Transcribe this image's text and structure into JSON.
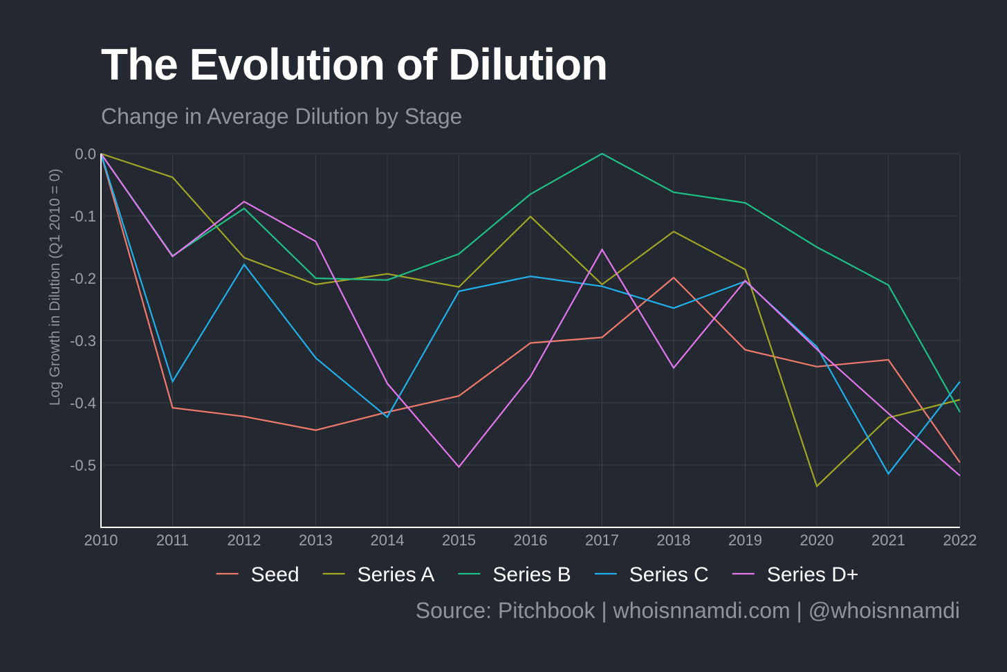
{
  "title": "The Evolution of Dilution",
  "subtitle": "Change in Average Dilution by Stage",
  "source": "Source: Pitchbook | whoisnnamdi.com | @whoisnnamdi",
  "colors": {
    "background": "#242830",
    "grid": "#3a3e46",
    "axis": "#ffffff",
    "tick_text": "#9da1a8"
  },
  "chart_data": {
    "type": "line",
    "ylabel": "Log Growth in Dilution (Q1 2010 = 0)",
    "xlabel": "",
    "x": [
      2010,
      2011,
      2012,
      2013,
      2014,
      2015,
      2016,
      2017,
      2018,
      2019,
      2020,
      2021,
      2022
    ],
    "x_tick_labels": [
      "2010",
      "2011",
      "2012",
      "2013",
      "2014",
      "2015",
      "2016",
      "2017",
      "2018",
      "2019",
      "2020",
      "2021",
      "2022"
    ],
    "xlim": [
      2010,
      2022
    ],
    "ylim": [
      -0.6,
      0.0
    ],
    "y_ticks": [
      0.0,
      -0.1,
      -0.2,
      -0.3,
      -0.4,
      -0.5
    ],
    "y_tick_labels": [
      "0.0",
      "-0.1",
      "-0.2",
      "-0.3",
      "-0.4",
      "-0.5"
    ],
    "grid": true,
    "legend_position": "bottom",
    "series": [
      {
        "name": "Seed",
        "color": "#f07a6e",
        "values": [
          0.0,
          -0.408,
          -0.422,
          -0.444,
          -0.415,
          -0.389,
          -0.304,
          -0.295,
          -0.199,
          -0.315,
          -0.342,
          -0.331,
          -0.496
        ]
      },
      {
        "name": "Series A",
        "color": "#a3a625",
        "values": [
          0.0,
          -0.038,
          -0.167,
          -0.21,
          -0.193,
          -0.214,
          -0.101,
          -0.21,
          -0.125,
          -0.186,
          -0.534,
          -0.424,
          -0.395
        ]
      },
      {
        "name": "Series B",
        "color": "#1fbf86",
        "values": [
          0.0,
          -0.164,
          -0.088,
          -0.2,
          -0.203,
          -0.161,
          -0.065,
          0.0,
          -0.062,
          -0.079,
          -0.15,
          -0.211,
          -0.415
        ]
      },
      {
        "name": "Series C",
        "color": "#22b0ea",
        "values": [
          0.0,
          -0.366,
          -0.178,
          -0.328,
          -0.423,
          -0.221,
          -0.197,
          -0.213,
          -0.248,
          -0.205,
          -0.31,
          -0.514,
          -0.366
        ]
      },
      {
        "name": "Series D+",
        "color": "#e277ee",
        "values": [
          0.0,
          -0.165,
          -0.077,
          -0.141,
          -0.369,
          -0.503,
          -0.358,
          -0.154,
          -0.344,
          -0.204,
          -0.314,
          -0.417,
          -0.517
        ]
      }
    ]
  }
}
